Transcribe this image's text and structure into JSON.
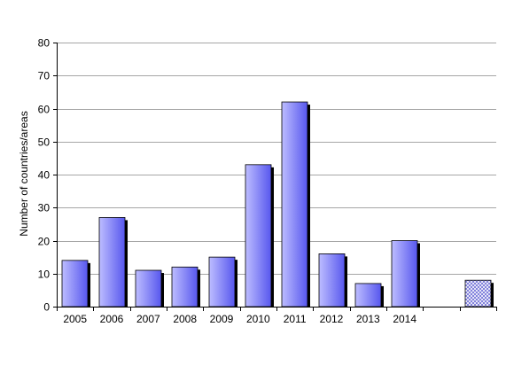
{
  "chart_data": {
    "type": "bar",
    "title": "",
    "xlabel": "",
    "ylabel": "Number of countries/areas",
    "ylim": [
      0,
      80
    ],
    "y_ticks": [
      0,
      10,
      20,
      30,
      40,
      50,
      60,
      70,
      80
    ],
    "grid": "horizontal",
    "categories": [
      "2005",
      "2006",
      "2007",
      "2008",
      "2009",
      "2010",
      "2011",
      "2012",
      "2013",
      "2014",
      "",
      ""
    ],
    "values": [
      14,
      27,
      11,
      12,
      15,
      43,
      62,
      16,
      7,
      20,
      null,
      8
    ],
    "bar_styles": [
      "solid",
      "solid",
      "solid",
      "solid",
      "solid",
      "solid",
      "solid",
      "solid",
      "solid",
      "solid",
      "none",
      "hatched"
    ],
    "colors": {
      "bar_light": "#bdbdff",
      "bar_dark": "#5757ee",
      "bar_shadow": "#000000",
      "grid": "#a6a6a6",
      "axis": "#000000",
      "hatch_fill": "#ffffff",
      "hatch_line": "#6b6bd6"
    }
  }
}
